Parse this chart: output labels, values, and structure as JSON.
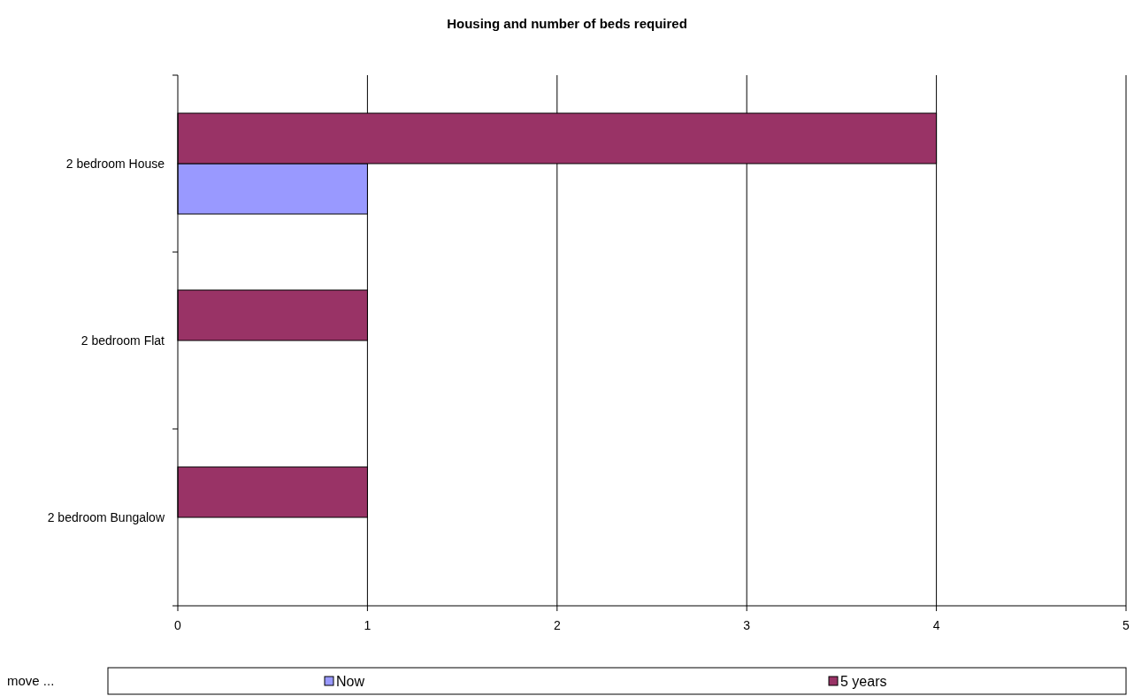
{
  "chart_data": {
    "type": "bar",
    "orientation": "horizontal",
    "title": "Housing and number of beds required",
    "categories": [
      "2 bedroom House",
      "2 bedroom Flat",
      "2 bedroom Bungalow"
    ],
    "series": [
      {
        "name": "Now",
        "color": "#9999ff",
        "values": [
          1,
          0,
          0
        ]
      },
      {
        "name": "5 years",
        "color": "#993366",
        "values": [
          4,
          1,
          1
        ]
      }
    ],
    "xlim": [
      0,
      5
    ],
    "xticks": [
      0,
      1,
      2,
      3,
      4,
      5
    ],
    "grid": "x",
    "legend": "bottom",
    "annotations": [
      "move ..."
    ]
  }
}
